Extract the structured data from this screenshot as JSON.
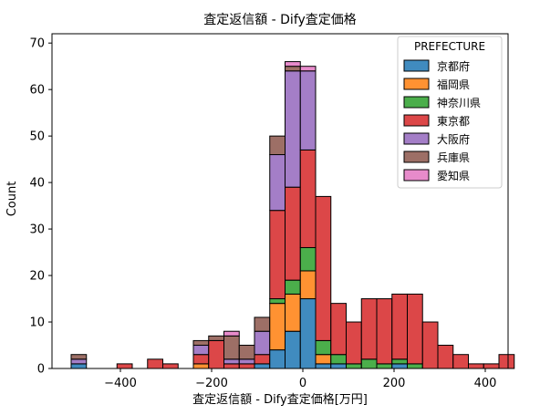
{
  "chart_data": {
    "type": "bar",
    "stacked": true,
    "title": "査定返信額 - Dify査定価格",
    "xlabel": "査定返信額 - Dify査定価格[万円]",
    "ylabel": "Count",
    "xlim": [
      -550,
      450
    ],
    "ylim": [
      0,
      72
    ],
    "xticks": [
      -400,
      -200,
      0,
      200,
      400
    ],
    "yticks": [
      0,
      10,
      20,
      30,
      40,
      50,
      60,
      70
    ],
    "xtick_labels": [
      "−400",
      "−200",
      "0",
      "200",
      "400"
    ],
    "ytick_labels": [
      "0",
      "10",
      "20",
      "30",
      "40",
      "50",
      "60",
      "70"
    ],
    "grid": false,
    "legend_placement": "top-right",
    "legend_title": "PREFECTURE",
    "bin_start": -508,
    "bin_width": 33.5,
    "series": [
      {
        "name": "京都府",
        "color": "#1f77b4",
        "values": [
          1,
          0,
          0,
          0,
          0,
          0,
          0,
          0,
          0,
          0,
          0,
          0,
          1,
          4,
          8,
          15,
          1,
          1,
          0,
          0,
          0,
          1,
          0,
          0,
          0,
          0,
          0,
          0,
          0,
          0
        ]
      },
      {
        "name": "福岡県",
        "color": "#ff7f0e",
        "values": [
          0,
          0,
          0,
          0,
          0,
          0,
          0,
          0,
          1,
          0,
          0,
          0,
          0,
          10,
          8,
          6,
          2,
          0,
          0,
          0,
          0,
          0,
          0,
          0,
          0,
          0,
          0,
          0,
          0,
          0
        ]
      },
      {
        "name": "神奈川県",
        "color": "#2ca02c",
        "values": [
          0,
          0,
          0,
          0,
          0,
          0,
          0,
          0,
          0,
          0,
          0,
          0,
          0,
          1,
          3,
          5,
          3,
          2,
          1,
          2,
          1,
          1,
          1,
          0,
          0,
          0,
          0,
          0,
          0,
          0
        ]
      },
      {
        "name": "東京都",
        "color": "#d62728",
        "values": [
          0,
          0,
          0,
          1,
          0,
          2,
          1,
          0,
          2,
          6,
          1,
          1,
          2,
          19,
          20,
          21,
          31,
          11,
          9,
          13,
          14,
          14,
          15,
          10,
          5,
          3,
          1,
          1,
          3,
          0
        ]
      },
      {
        "name": "大阪府",
        "color": "#9467bd",
        "values": [
          1,
          0,
          0,
          0,
          0,
          0,
          0,
          0,
          2,
          0,
          1,
          1,
          5,
          12,
          25,
          17,
          0,
          0,
          0,
          0,
          0,
          0,
          0,
          0,
          0,
          0,
          0,
          0,
          0,
          0
        ]
      },
      {
        "name": "兵庫県",
        "color": "#8c564b",
        "values": [
          1,
          0,
          0,
          0,
          0,
          0,
          0,
          0,
          1,
          1,
          5,
          3,
          3,
          4,
          1,
          0,
          0,
          0,
          0,
          0,
          0,
          0,
          0,
          0,
          0,
          0,
          0,
          0,
          0,
          0
        ]
      },
      {
        "name": "愛知県",
        "color": "#e377c2",
        "values": [
          0,
          0,
          0,
          0,
          0,
          0,
          0,
          0,
          0,
          0,
          1,
          0,
          0,
          0,
          1,
          1,
          0,
          0,
          0,
          0,
          0,
          0,
          0,
          0,
          0,
          0,
          0,
          0,
          0,
          0
        ]
      }
    ]
  }
}
